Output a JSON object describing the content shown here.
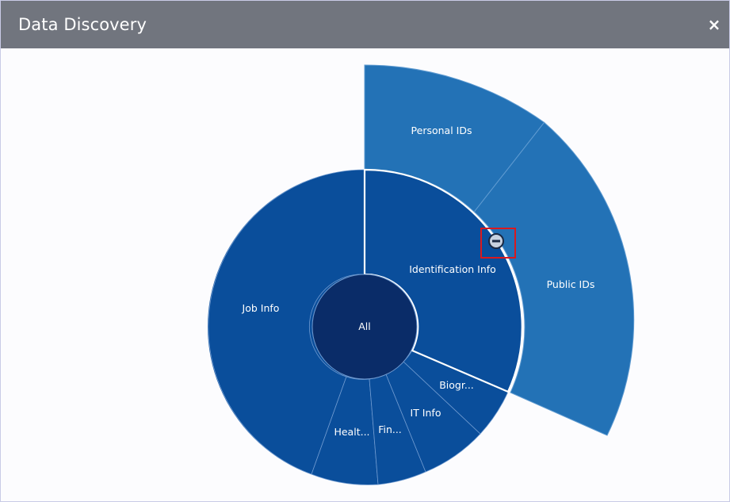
{
  "dialog": {
    "title": "Data Discovery",
    "close_icon": "close-icon",
    "close_glyph": "×"
  },
  "colors": {
    "titlebar": "#71757e",
    "center": "#0a2c68",
    "ring1": "#0a4e9b",
    "ring2": "#2372b6",
    "selected_outline": "#ffffff",
    "callout_box": "#d9191e"
  },
  "chart_data": {
    "type": "sunburst",
    "center_label": "All",
    "selected": "Identification Info",
    "collapse_icon": "minus-circle-icon",
    "segments": [
      {
        "label": "Identification Info",
        "children": [
          "Personal IDs",
          "Public IDs"
        ]
      },
      {
        "label": "Biogr..."
      },
      {
        "label": "IT Info"
      },
      {
        "label": "Fin..."
      },
      {
        "label": "Healt..."
      },
      {
        "label": "Job Info"
      }
    ]
  }
}
